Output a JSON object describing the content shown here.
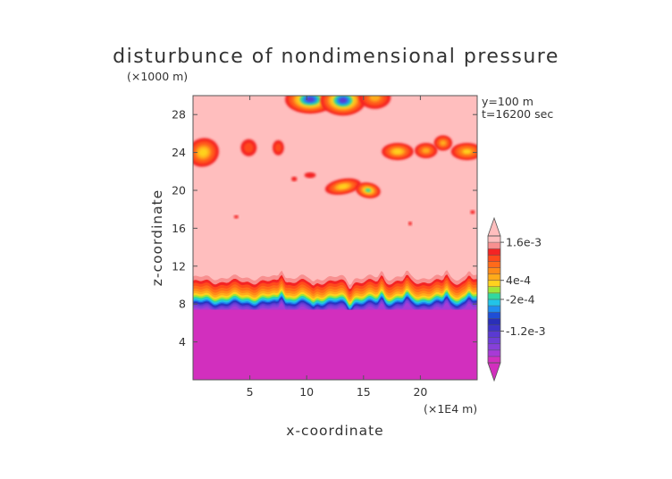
{
  "chart_data": {
    "type": "heatmap",
    "title": "disturbunce of nondimensional pressure",
    "xlabel": "x-coordinate",
    "ylabel": "z-coordinate",
    "x_unit": "(×1E4 m)",
    "y_unit": "(×1000 m)",
    "annotations": [
      "y=100 m",
      "t=16200 sec"
    ],
    "xlim": [
      0,
      25
    ],
    "ylim": [
      0,
      30
    ],
    "x_ticks": [
      5,
      10,
      15,
      20
    ],
    "y_ticks": [
      4,
      8,
      12,
      16,
      20,
      24,
      28
    ],
    "colorbar": {
      "levels": [
        -0.002,
        -0.0018,
        -0.0016,
        -0.0014,
        -0.0012,
        -0.001,
        -0.0008,
        -0.0006,
        -0.0004,
        -0.0002,
        0,
        0.0002,
        0.0004,
        0.0006,
        0.0008,
        0.001,
        0.0012,
        0.0014,
        0.0016,
        0.0018
      ],
      "colors": [
        "#d22fbe",
        "#a83ad6",
        "#8740d8",
        "#6e3ed6",
        "#5a3ad2",
        "#3d34c8",
        "#2a2fb8",
        "#1f4ed6",
        "#1f8cf0",
        "#22c3e8",
        "#32d8a0",
        "#9ee63a",
        "#ffd21e",
        "#ffab1a",
        "#ff8a18",
        "#ff6a1a",
        "#ff4a1c",
        "#f42424",
        "#f89090",
        "#ffbebe"
      ],
      "tick_labels": [
        {
          "label": "1.6e-3",
          "value": 0.0016
        },
        {
          "label": "4e-4",
          "value": 0.0004
        },
        {
          "label": "-2e-4",
          "value": -0.0002
        },
        {
          "label": "-1.2e-3",
          "value": -0.0012
        }
      ],
      "extend": "both"
    },
    "field_description": [
      {
        "region": "lower layer",
        "z_range": [
          0,
          7.5
        ],
        "value": -0.002
      },
      {
        "region": "transition band",
        "z_range": [
          7.5,
          9.7
        ],
        "value_range": [
          -0.002,
          0.0014
        ]
      },
      {
        "region": "upper background",
        "z_range": [
          9.7,
          30
        ],
        "value": 0.0018
      }
    ]
  }
}
